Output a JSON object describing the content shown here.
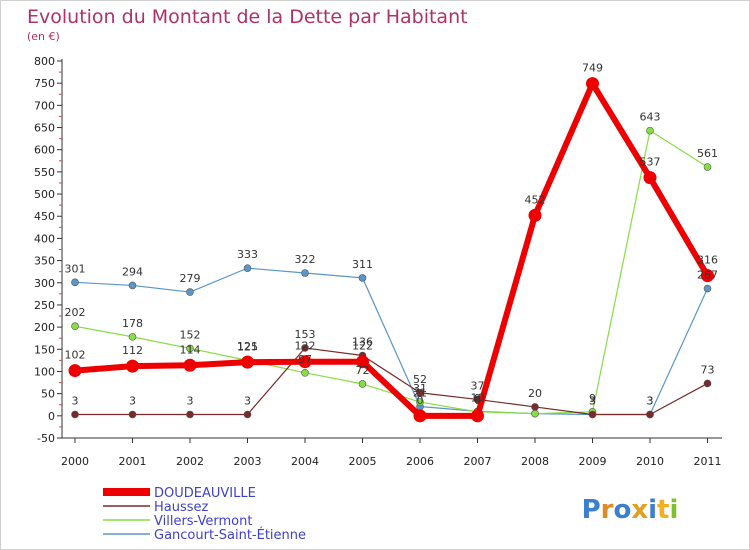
{
  "title": "Evolution du Montant de la Dette par Habitant",
  "subtitle": "(en €)",
  "logo": "Proxiti",
  "chart_data": {
    "type": "line",
    "x": [
      "2000",
      "2001",
      "2002",
      "2003",
      "2004",
      "2005",
      "2006",
      "2007",
      "2008",
      "2009",
      "2010",
      "2011"
    ],
    "ylim": [
      -50,
      800
    ],
    "yticks": [
      -50,
      0,
      50,
      100,
      150,
      200,
      250,
      300,
      350,
      400,
      450,
      500,
      550,
      600,
      650,
      700,
      750,
      800
    ],
    "grid": false,
    "legend_position": "bottom-left",
    "series": [
      {
        "name": "Gancourt-Saint-Étienne",
        "color": "#5a96c8",
        "width": 1.2,
        "radius": 3.5,
        "values": [
          301,
          294,
          279,
          333,
          322,
          311,
          21,
          10,
          5,
          3,
          3,
          287
        ],
        "labels": [
          "301",
          "294",
          "279",
          "333",
          "322",
          "311",
          "21",
          "10",
          "",
          "3",
          "3",
          "287"
        ]
      },
      {
        "name": "Villers-Vermont",
        "color": "#88dd44",
        "width": 1.2,
        "radius": 3.5,
        "values": [
          202,
          178,
          152,
          125,
          97,
          72,
          31,
          9,
          5,
          9,
          643,
          561
        ],
        "labels": [
          "202",
          "178",
          "152",
          "125",
          "97",
          "72",
          "31",
          "9",
          "",
          "9",
          "643",
          "561"
        ]
      },
      {
        "name": "Haussez",
        "color": "#7a2a2a",
        "width": 1.2,
        "radius": 3.5,
        "values": [
          3,
          3,
          3,
          3,
          153,
          136,
          52,
          37,
          20,
          3,
          3,
          73
        ],
        "labels": [
          "3",
          "3",
          "3",
          "3",
          "153",
          "136",
          "52",
          "37",
          "20",
          "3",
          "3",
          "73"
        ]
      },
      {
        "name": "DOUDEAUVILLE",
        "color": "#ee0000",
        "width": 6,
        "radius": 6.5,
        "values": [
          102,
          112,
          114,
          121,
          122,
          122,
          0,
          0,
          452,
          749,
          537,
          316
        ],
        "labels": [
          "102",
          "112",
          "114",
          "121",
          "122",
          "122",
          "0",
          "0",
          "452",
          "749",
          "537",
          "316"
        ]
      }
    ]
  }
}
